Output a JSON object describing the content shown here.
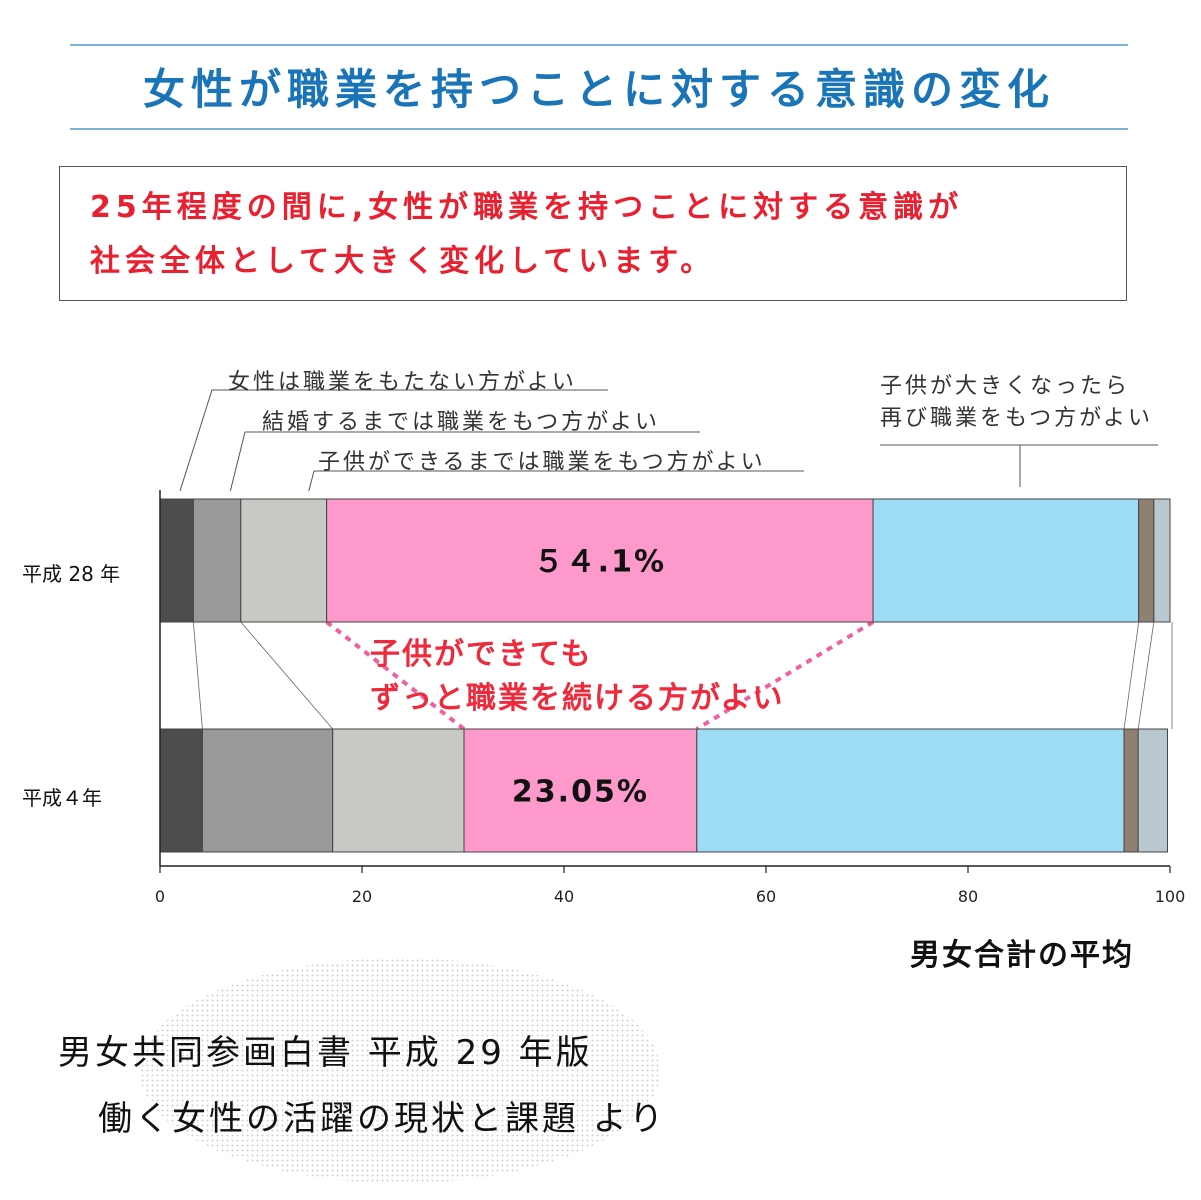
{
  "header": {
    "title": "女性が職業を持つことに対する意識の変化"
  },
  "message": {
    "line1": "25年程度の間に,女性が職業を持つことに対する意識が",
    "line2": "社会全体として大きく変化しています。"
  },
  "labels": {
    "no_job": "女性は職業をもたない方がよい",
    "until_marriage": "結婚するまでは職業をもつ方がよい",
    "until_child": "子供ができるまでは職業をもつ方がよい",
    "return_line1": "子供が大きくなったら",
    "return_line2": "再び職業をもつ方がよい",
    "continue_line1": "子供ができても",
    "continue_line2": "ずっと職業を続ける方がよい"
  },
  "basis_label": "男女合計の平均",
  "source": {
    "line1": "男女共同参画白書 平成 29 年版",
    "line2": "働く女性の活躍の現状と課題 より"
  },
  "chart_data": {
    "type": "bar",
    "orientation": "horizontal",
    "stacked": true,
    "categories": [
      "平成 28 年",
      "平成４年"
    ],
    "series": [
      {
        "name": "女性は職業をもたない方がよい",
        "color": "#4d4d4d",
        "values": [
          3.3,
          4.2
        ]
      },
      {
        "name": "結婚するまでは職業をもつ方がよい",
        "color": "#999999",
        "values": [
          4.7,
          12.9
        ]
      },
      {
        "name": "子供ができるまでは職業をもつ方がよい",
        "color": "#c7c9c5",
        "values": [
          8.5,
          13.0
        ]
      },
      {
        "name": "子供ができても ずっと職業を続ける方がよい",
        "color": "#fe9acb",
        "values": [
          54.1,
          23.05
        ]
      },
      {
        "name": "子供が大きくなったら 再び職業をもつ方がよい",
        "color": "#9ddcf4",
        "values": [
          26.3,
          42.3
        ]
      },
      {
        "name": "",
        "color": "#8f8071",
        "values": [
          1.5,
          1.4
        ]
      },
      {
        "name": "",
        "color": "#b9c7d1",
        "values": [
          1.6,
          2.9
        ]
      }
    ],
    "data_labels": [
      "５４.1%",
      "23.05%"
    ],
    "xlim": [
      0,
      100
    ],
    "xticks": [
      "0",
      "20",
      "40",
      "60",
      "80",
      "100"
    ],
    "xlabel": "",
    "ylabel": ""
  }
}
